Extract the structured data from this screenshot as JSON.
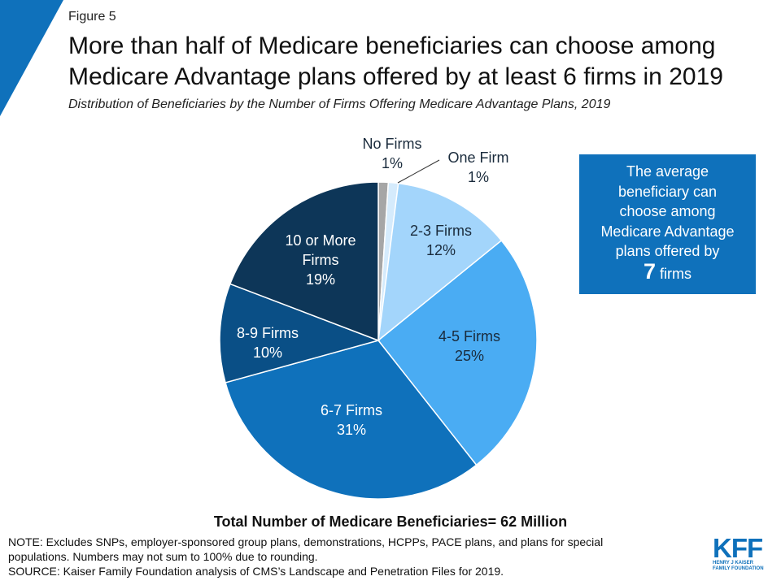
{
  "header": {
    "figure_label": "Figure 5",
    "title_line1": "More than half of Medicare beneficiaries can choose among",
    "title_line2": "Medicare Advantage plans offered by at least 6 firms in 2019",
    "subtitle": "Distribution of Beneficiaries by the Number of Firms Offering Medicare Advantage Plans, 2019"
  },
  "chart_data": {
    "type": "pie",
    "slices": [
      {
        "label": "No Firms",
        "value": 1,
        "display": "1%",
        "color": "#a6a6a6"
      },
      {
        "label": "One Firm",
        "value": 1,
        "display": "1%",
        "color": "#d5ebfc"
      },
      {
        "label": "2-3 Firms",
        "value": 12,
        "display": "12%",
        "color": "#a3d5fb"
      },
      {
        "label": "4-5 Firms",
        "value": 25,
        "display": "25%",
        "color": "#4aacf3"
      },
      {
        "label": "6-7 Firms",
        "value": 31,
        "display": "31%",
        "color": "#0f71bb"
      },
      {
        "label": "8-9 Firms",
        "value": 10,
        "display": "10%",
        "color": "#0a4f86"
      },
      {
        "label": "10 or More Firms",
        "value": 19,
        "display": "19%",
        "color": "#0d3658"
      }
    ]
  },
  "callout": {
    "line1": "The average",
    "line2": "beneficiary can",
    "line3": "choose among",
    "line4": "Medicare Advantage",
    "line5": "plans offered by",
    "number": "7",
    "unit": "firms"
  },
  "total": "Total Number of Medicare Beneficiaries= 62 Million",
  "notes": {
    "line1": "NOTE: Excludes SNPs, employer-sponsored group plans, demonstrations, HCPPs, PACE plans, and plans for special",
    "line2": "populations. Numbers may not sum to 100% due to rounding.",
    "line3": "SOURCE: Kaiser Family Foundation analysis of CMS’s Landscape and Penetration Files for 2019."
  },
  "logo": {
    "text": "KFF",
    "sub_line1": "HENRY J KAISER",
    "sub_line2": "FAMILY FOUNDATION"
  },
  "colors": {
    "accent": "#0f71bb",
    "corner": "#0f71bb"
  }
}
